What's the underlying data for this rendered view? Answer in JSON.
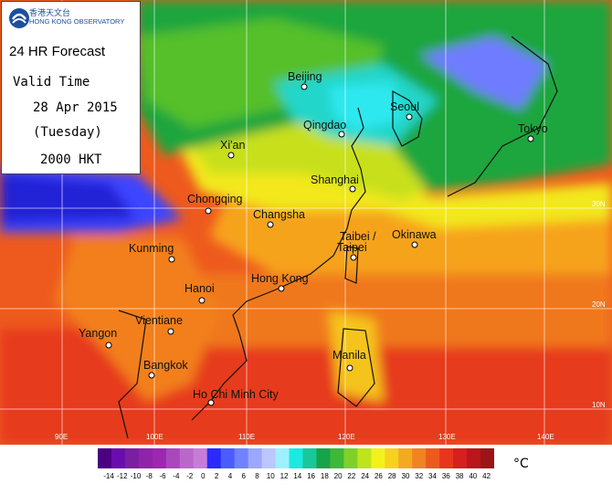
{
  "header": {
    "org_zh": "香港天文台",
    "org_en": "HONG KONG OBSERVATORY",
    "title": "24 HR Forecast",
    "valid_label": "Valid Time",
    "date": "28 Apr 2015",
    "day": "(Tuesday)",
    "time": "2000 HKT"
  },
  "map": {
    "cities": [
      {
        "name": "Beijing"
      },
      {
        "name": "Seoul"
      },
      {
        "name": "Qingdao"
      },
      {
        "name": "Tokyo"
      },
      {
        "name": "Xi'an"
      },
      {
        "name": "Shanghai"
      },
      {
        "name": "Chongqing"
      },
      {
        "name": "Changsha"
      },
      {
        "name": "Taibei /"
      },
      {
        "name": "Taipei"
      },
      {
        "name": "Okinawa"
      },
      {
        "name": "Kunming"
      },
      {
        "name": "Hong Kong"
      },
      {
        "name": "Hanoi"
      },
      {
        "name": "Vientiane"
      },
      {
        "name": "Yangon"
      },
      {
        "name": "Manila"
      },
      {
        "name": "Bangkok"
      },
      {
        "name": "Ho Chi Minh City"
      }
    ],
    "lon_labels": [
      "90E",
      "100E",
      "110E",
      "120E",
      "130E",
      "140E"
    ],
    "lat_labels": [
      "30N",
      "20N",
      "10N"
    ]
  },
  "legend": {
    "unit": "°C",
    "ticks": [
      "-14",
      "-12",
      "-10",
      "-8",
      "-6",
      "-4",
      "-2",
      "0",
      "2",
      "4",
      "6",
      "8",
      "10",
      "12",
      "14",
      "16",
      "18",
      "20",
      "22",
      "24",
      "26",
      "28",
      "30",
      "32",
      "34",
      "36",
      "38",
      "40",
      "42"
    ],
    "colors": [
      "#4b0082",
      "#6a0dad",
      "#7b1fa2",
      "#8e24aa",
      "#9c27b0",
      "#ab47bc",
      "#ba68c8",
      "#c77dd8",
      "#2a2aff",
      "#4a5cff",
      "#6f82ff",
      "#9aa8ff",
      "#bcc6ff",
      "#9ff0ff",
      "#1de9e0",
      "#19c79b",
      "#16a34a",
      "#3fb83a",
      "#7fd12a",
      "#bfe31c",
      "#f2f21a",
      "#f6d21f",
      "#f4aa20",
      "#f18320",
      "#ec5a1e",
      "#e8361d",
      "#d61f1f",
      "#b9171b",
      "#9b1416"
    ]
  }
}
